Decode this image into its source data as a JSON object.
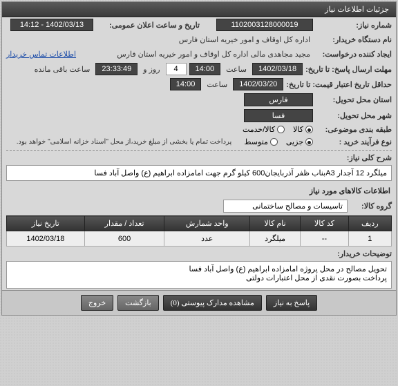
{
  "panel_title": "جزئیات اطلاعات نیاز",
  "fields": {
    "need_no_label": "شماره نیاز:",
    "need_no": "1102003128000019",
    "announce_label": "تاریخ و ساعت اعلان عمومی:",
    "announce": "1402/03/13 - 14:12",
    "buyer_label": "نام دستگاه خریدار:",
    "buyer": "اداره کل اوقاف و امور خیریه استان فارس",
    "requester_label": "ایجاد کننده درخواست:",
    "requester": "مجید مجاهدی مالی اداره کل اوقاف و امور خیریه استان فارس",
    "contact_link": "اطلاعات تماس خریدار",
    "deadline_label": "مهلت ارسال پاسخ: تا تاریخ:",
    "deadline_date": "1402/03/18",
    "time_label": "ساعت",
    "deadline_time": "14:00",
    "days_remaining": "4",
    "days_suffix": "روز و",
    "time_remaining": "23:33:49",
    "remaining_suffix": "ساعت باقی مانده",
    "validity_label": "حداقل تاریخ اعتبار قیمت: تا تاریخ:",
    "validity_date": "1402/03/20",
    "validity_time": "14:00",
    "province_label": "استان محل تحویل:",
    "province": "فارس",
    "city_label": "شهر محل تحویل:",
    "city": "فسا",
    "class_label": "طبقه بندی موضوعی:",
    "class_goods": "کالا",
    "class_service": "کالا/خدمت",
    "purchase_type_label": "نوع فرآیند خرید :",
    "pt_small": "جزیی",
    "pt_medium": "متوسط",
    "payment_note": "پرداخت تمام یا بخشی از مبلغ خرید،از محل \"اسناد خزانه اسلامی\" خواهد بود.",
    "subject_label": "شرح کلی نیاز:",
    "subject": "میلگرد 12 آجدار A3بناب ظفر آذربایجان600 کیلو گرم جهت امامزاده ابراهیم (ع) واصل آباد فسا",
    "items_header": "اطلاعات کالاهای مورد نیاز",
    "group_label": "گروه کالا:",
    "group": "تاسیسات و مصالح ساختمانی",
    "explain_label": "توضیحات خریدار:",
    "explain_line1": "تحویل مصالح در محل پروژه امامزاده ابراهیم (ع) واصل آباد فسا",
    "explain_line2": "پرداخت بصورت نقدی از محل اعتبارات دولتی"
  },
  "table": {
    "cols": [
      "ردیف",
      "کد کالا",
      "نام کالا",
      "واحد شمارش",
      "تعداد / مقدار",
      "تاریخ نیاز"
    ],
    "rows": [
      [
        "1",
        "--",
        "میلگرد",
        "عدد",
        "600",
        "1402/03/18"
      ]
    ]
  },
  "buttons": {
    "reply": "پاسخ به نیاز",
    "attachments": "مشاهده مدارک پیوستی (0)",
    "back": "بازگشت",
    "exit": "خروج"
  }
}
